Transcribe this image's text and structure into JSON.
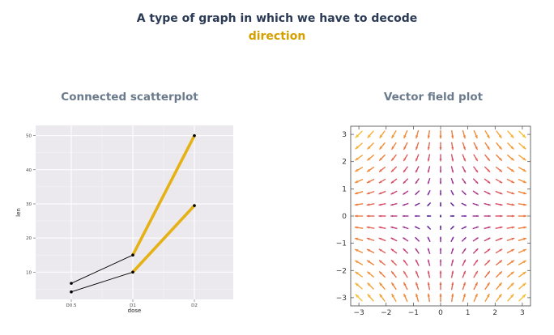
{
  "header": {
    "title_line1": "A type of graph in which we have to decode",
    "title_line2": "direction",
    "highlight_color": "#d4a000"
  },
  "chart_data": [
    {
      "type": "line",
      "subtitle": "Connected scatterplot",
      "xlabel": "dose",
      "ylabel": "len",
      "categories": [
        "D0.5",
        "D1",
        "D2"
      ],
      "ylim": [
        2,
        53
      ],
      "y_ticks": [
        "10",
        "20",
        "30",
        "40",
        "50"
      ],
      "grid": true,
      "series": [
        {
          "values": [
            6.7,
            15.0,
            50.0
          ]
        },
        {
          "values": [
            4.2,
            10.0,
            29.5
          ]
        }
      ],
      "segment_colors": [
        "#000000",
        "#e5b114"
      ]
    },
    {
      "type": "vector_field",
      "subtitle": "Vector field plot",
      "xlim": [
        -3.3,
        3.3
      ],
      "ylim": [
        -3.3,
        3.3
      ],
      "x_ticks": [
        "−3",
        "−2",
        "−1",
        "0",
        "1",
        "2",
        "3"
      ],
      "y_ticks": [
        "−3",
        "−2",
        "−1",
        "0",
        "1",
        "2",
        "3"
      ],
      "grid_count": 15,
      "field": "(x, -y)",
      "colormap": [
        "#2a1a8a",
        "#8a2aa0",
        "#d84a6a",
        "#f08838",
        "#f8c038"
      ]
    }
  ]
}
